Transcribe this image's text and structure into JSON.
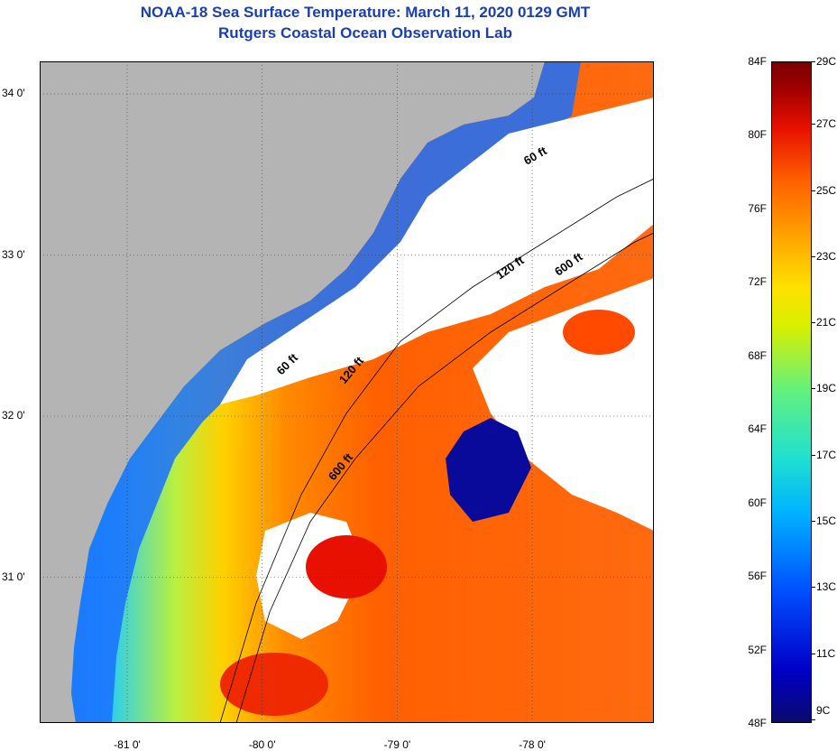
{
  "title_line1": "NOAA-18 Sea Surface Temperature:  March 11, 2020 0129 GMT",
  "title_line2": "Rutgers Coastal Ocean Observation Lab",
  "lat_labels": [
    {
      "label": "34 0'",
      "lat": 34.0
    },
    {
      "label": "33 0'",
      "lat": 33.0
    },
    {
      "label": "32 0'",
      "lat": 32.0
    },
    {
      "label": "31 0'",
      "lat": 31.0
    }
  ],
  "lon_labels": [
    {
      "label": "-81 0'",
      "lon": -81.0
    },
    {
      "label": "-80 0'",
      "lon": -80.0
    },
    {
      "label": "-79 0'",
      "lon": -79.0
    },
    {
      "label": "-78 0'",
      "lon": -78.0
    }
  ],
  "contour_labels": [
    "60 ft",
    "120 ft",
    "600 ft",
    "600 ft",
    "120 ft",
    "60 ft"
  ],
  "colorbar": {
    "fahrenheit": [
      "84F",
      "80F",
      "76F",
      "72F",
      "68F",
      "64F",
      "60F",
      "56F",
      "52F",
      "48F"
    ],
    "celsius": [
      "29C",
      "27C",
      "25C",
      "23C",
      "21C",
      "19C",
      "17C",
      "15C",
      "13C",
      "11C",
      "9C"
    ],
    "min_c": 9,
    "max_c": 29,
    "colors": [
      "#0a0a6e",
      "#0000c8",
      "#0050ff",
      "#00b4ff",
      "#20e0d0",
      "#60f080",
      "#d8f000",
      "#ffe000",
      "#ffa000",
      "#ff6000",
      "#e81000",
      "#7a0000"
    ]
  },
  "colors": {
    "title": "#1a3fb4",
    "land": "#b4b4b4",
    "cloud": "#ffffff",
    "coast": "#000000"
  }
}
